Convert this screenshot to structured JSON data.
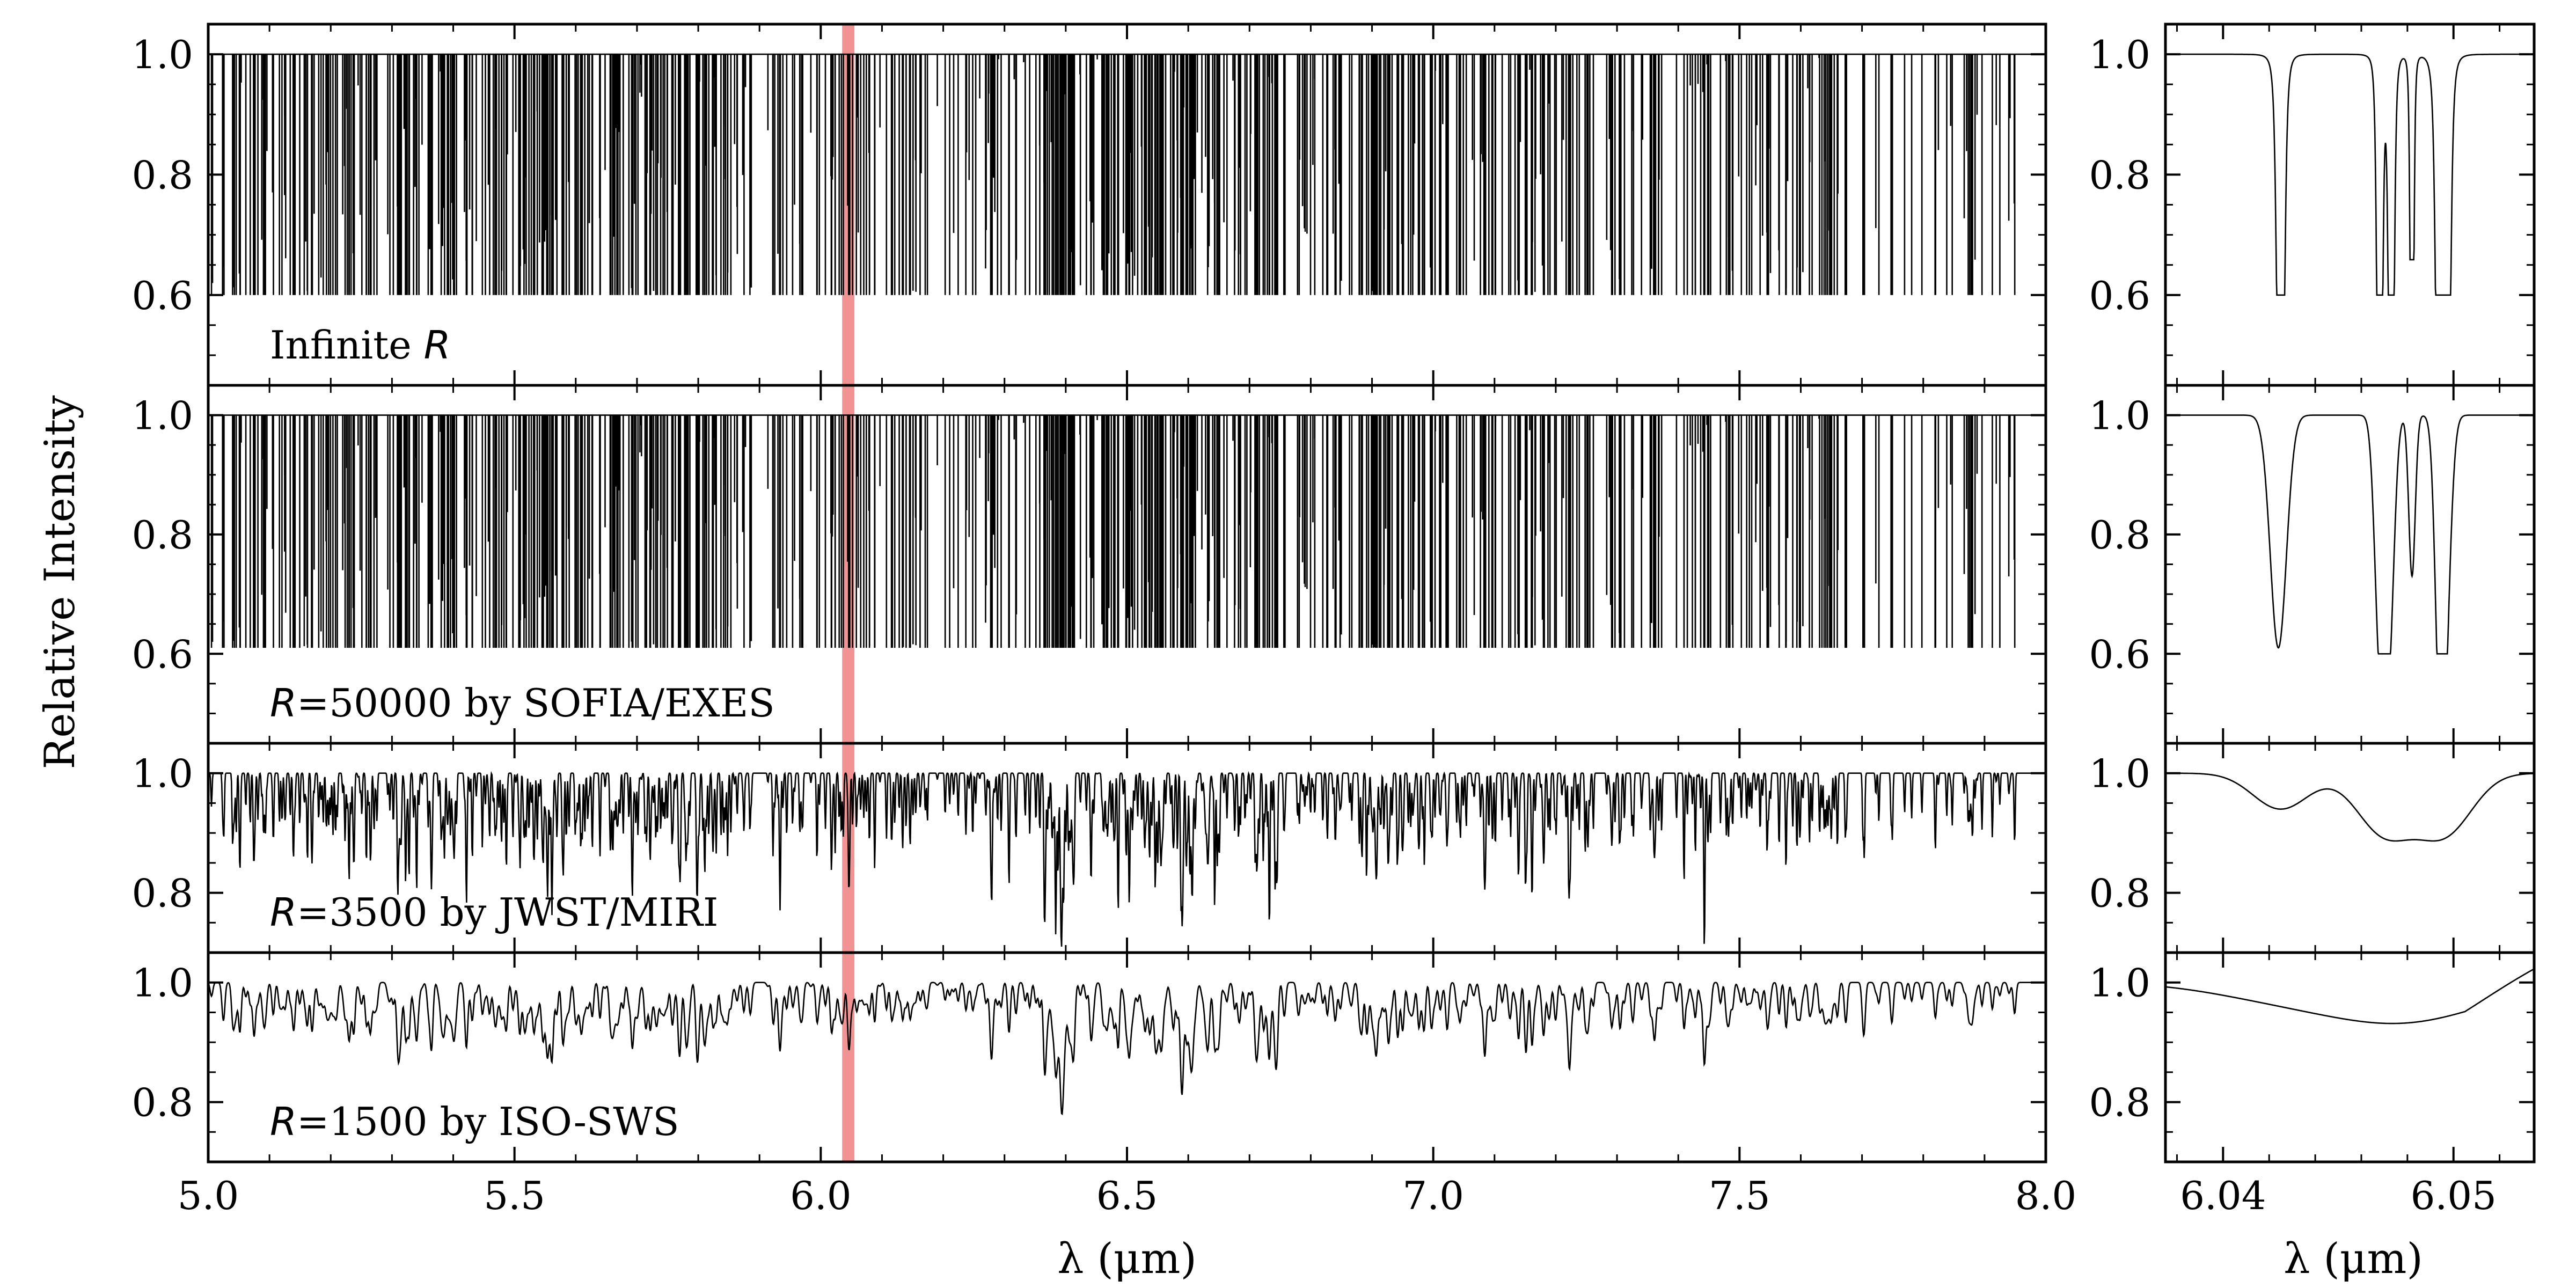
{
  "figure": {
    "ylabel": "Relative Intensity",
    "xlabel_left": "λ (μm)",
    "xlabel_right": "λ (μm)"
  },
  "chart_data": [
    {
      "type": "line",
      "panel": "full-range",
      "label": "Infinite R",
      "label_parts": {
        "pre": "Infinite ",
        "r": "R",
        "post": ""
      },
      "xlim": [
        5.0,
        8.0
      ],
      "ylim": [
        0.45,
        1.05
      ],
      "yticks": [
        0.6,
        0.8,
        1.0
      ],
      "continuum": 1.0,
      "line_depth_max": 0.4,
      "highlight_band": [
        6.035,
        6.055
      ],
      "highlight_color": "#f08080"
    },
    {
      "type": "line",
      "panel": "full-range",
      "label": "R=50000 by SOFIA/EXES",
      "label_parts": {
        "pre": "",
        "r": "R",
        "post": "=50000 by SOFIA/EXES"
      },
      "xlim": [
        5.0,
        8.0
      ],
      "ylim": [
        0.45,
        1.05
      ],
      "yticks": [
        0.6,
        0.8,
        1.0
      ],
      "continuum": 1.0,
      "line_depth_max": 0.39,
      "highlight_band": [
        6.035,
        6.055
      ],
      "highlight_color": "#f08080"
    },
    {
      "type": "line",
      "panel": "full-range",
      "label": "R=3500 by JWST/MIRI",
      "label_parts": {
        "pre": "",
        "r": "R",
        "post": "=3500 by JWST/MIRI"
      },
      "xlim": [
        5.0,
        8.0
      ],
      "ylim": [
        0.7,
        1.05
      ],
      "yticks": [
        0.8,
        1.0
      ],
      "continuum": 1.0,
      "deepest_feature": {
        "x": 6.63,
        "y": 0.82
      },
      "highlight_band": [
        6.035,
        6.055
      ],
      "highlight_color": "#f08080"
    },
    {
      "type": "line",
      "panel": "full-range",
      "label": "R=1500 by ISO-SWS",
      "label_parts": {
        "pre": "",
        "r": "R",
        "post": "=1500 by ISO-SWS"
      },
      "xlim": [
        5.0,
        8.0
      ],
      "ylim": [
        0.7,
        1.05
      ],
      "yticks": [
        0.8,
        1.0
      ],
      "continuum": 1.0,
      "deepest_feature": {
        "x": 6.63,
        "y": 0.865
      },
      "highlight_band": [
        6.035,
        6.055
      ],
      "highlight_color": "#f08080"
    }
  ],
  "x_axis_left": {
    "ticks": [
      "5.0",
      "5.5",
      "6.0",
      "6.5",
      "7.0",
      "7.5",
      "8.0"
    ],
    "tick_values": [
      5.0,
      5.5,
      6.0,
      6.5,
      7.0,
      7.5,
      8.0
    ]
  },
  "zoom_panels": {
    "xlim": [
      6.0375,
      6.0535
    ],
    "x_ticks": [
      "6.04",
      "6.05"
    ],
    "x_tick_values": [
      6.04,
      6.05
    ],
    "panels": [
      {
        "ylim": [
          0.45,
          1.05
        ],
        "yticks": [
          0.6,
          0.8,
          1.0
        ],
        "lines": [
          {
            "x": 6.0425,
            "depth": 0.4,
            "width": 0.0002,
            "sat": true
          },
          {
            "x": 6.0468,
            "depth": 0.4,
            "width": 0.00015,
            "sat": true
          },
          {
            "x": 6.0473,
            "depth": 0.4,
            "width": 0.00015,
            "sat": true
          },
          {
            "x": 6.0482,
            "depth": 0.34,
            "width": 0.0001,
            "sat": false
          },
          {
            "x": 6.0494,
            "depth": 0.4,
            "width": 0.0002,
            "sat": true
          },
          {
            "x": 6.0497,
            "depth": 0.4,
            "width": 0.0002,
            "sat": true
          }
        ]
      },
      {
        "ylim": [
          0.45,
          1.05
        ],
        "yticks": [
          0.6,
          0.8,
          1.0
        ],
        "lines": [
          {
            "x": 6.0424,
            "depth": 0.39,
            "width": 0.00035
          },
          {
            "x": 6.0468,
            "depth": 0.38,
            "width": 0.00022
          },
          {
            "x": 6.0472,
            "depth": 0.38,
            "width": 0.00022
          },
          {
            "x": 6.0482,
            "depth": 0.27,
            "width": 0.00014
          },
          {
            "x": 6.0494,
            "depth": 0.28,
            "width": 0.0002
          },
          {
            "x": 6.0496,
            "depth": 0.39,
            "width": 0.00025
          }
        ]
      },
      {
        "ylim": [
          0.7,
          1.05
        ],
        "yticks": [
          0.8,
          1.0
        ],
        "lines": [
          {
            "x": 6.0425,
            "depth": 0.06,
            "width": 0.0012
          },
          {
            "x": 6.047,
            "depth": 0.1,
            "width": 0.0012
          },
          {
            "x": 6.0496,
            "depth": 0.1,
            "width": 0.0012
          }
        ]
      },
      {
        "ylim": [
          0.7,
          1.05
        ],
        "yticks": [
          0.8,
          1.0
        ],
        "lines": [
          {
            "x": 6.042,
            "depth": 0.02,
            "width": 0.003
          },
          {
            "x": 6.0478,
            "depth": 0.065,
            "width": 0.0035
          }
        ]
      }
    ]
  }
}
